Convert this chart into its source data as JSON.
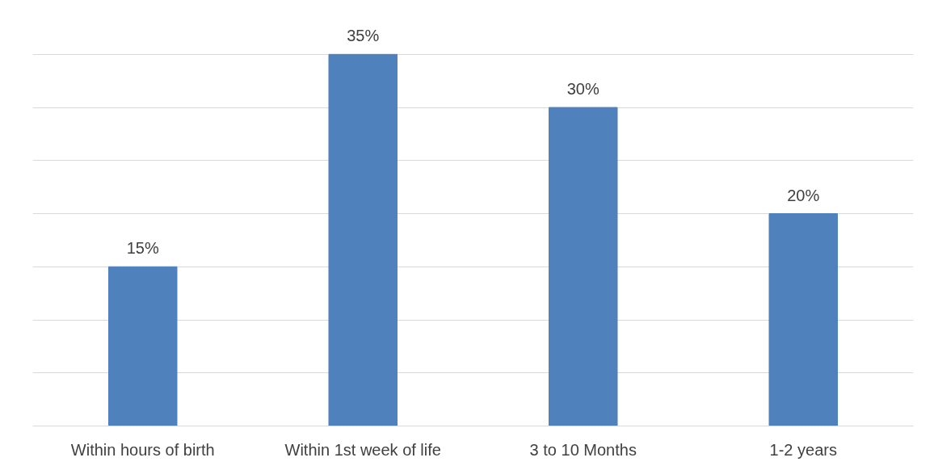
{
  "chart_data": {
    "type": "bar",
    "categories": [
      "Within hours of birth",
      "Within 1st week of life",
      "3 to 10 Months",
      "1-2 years"
    ],
    "values": [
      15,
      35,
      30,
      20
    ],
    "color": "#4f81bd",
    "value_labels": [
      "15%",
      "35%",
      "30%",
      "20%"
    ],
    "grid": "y",
    "tick_labels": "x"
  }
}
